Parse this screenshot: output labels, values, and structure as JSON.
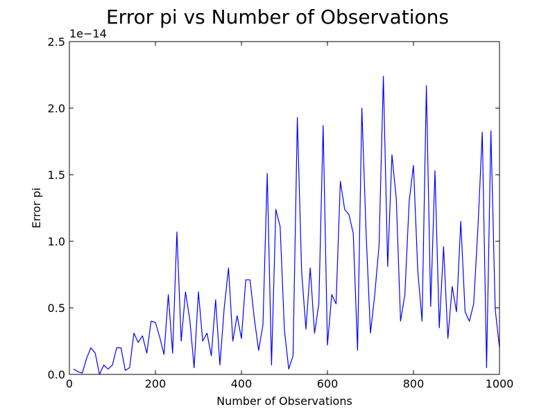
{
  "chart_data": {
    "type": "line",
    "title": "Error pi vs Number of Observations",
    "xlabel": "Number of Observations",
    "ylabel": "Error pi",
    "y_offset_label": "1e−14",
    "xlim": [
      0,
      1000
    ],
    "ylim": [
      0,
      2.5
    ],
    "x_ticks": [
      0,
      200,
      400,
      600,
      800,
      1000
    ],
    "x_tick_labels": [
      "0",
      "200",
      "400",
      "600",
      "800",
      "1000"
    ],
    "y_ticks": [
      0,
      0.5,
      1.0,
      1.5,
      2.0,
      2.5
    ],
    "y_tick_labels": [
      "0.0",
      "0.5",
      "1.0",
      "1.5",
      "2.0",
      "2.5"
    ],
    "grid": false,
    "line_color": "#0000ff",
    "series": [
      {
        "x": [
          10,
          20,
          30,
          40,
          50,
          60,
          70,
          80,
          90,
          100,
          110,
          120,
          130,
          140,
          150,
          160,
          170,
          180,
          190,
          200,
          210,
          220,
          230,
          240,
          250,
          260,
          270,
          280,
          290,
          300,
          310,
          320,
          330,
          340,
          350,
          360,
          370,
          380,
          390,
          400,
          410,
          420,
          430,
          440,
          450,
          460,
          470,
          480,
          490,
          500,
          510,
          520,
          530,
          540,
          550,
          560,
          570,
          580,
          590,
          600,
          610,
          620,
          630,
          640,
          650,
          660,
          670,
          680,
          690,
          700,
          710,
          720,
          730,
          740,
          750,
          760,
          770,
          780,
          790,
          800,
          810,
          820,
          830,
          840,
          850,
          860,
          870,
          880,
          890,
          900,
          910,
          920,
          930,
          940,
          950,
          960,
          970,
          980,
          990,
          1000
        ],
        "y": [
          0.04,
          0.02,
          0.01,
          0.12,
          0.2,
          0.16,
          0.0,
          0.07,
          0.04,
          0.07,
          0.2,
          0.2,
          0.03,
          0.05,
          0.31,
          0.24,
          0.29,
          0.16,
          0.4,
          0.39,
          0.28,
          0.15,
          0.6,
          0.16,
          1.07,
          0.25,
          0.62,
          0.41,
          0.05,
          0.62,
          0.25,
          0.31,
          0.14,
          0.56,
          0.07,
          0.5,
          0.8,
          0.25,
          0.44,
          0.27,
          0.71,
          0.71,
          0.42,
          0.18,
          0.37,
          1.51,
          0.07,
          1.24,
          1.11,
          0.33,
          0.04,
          0.14,
          1.93,
          0.77,
          0.34,
          0.8,
          0.31,
          0.53,
          1.87,
          0.22,
          0.6,
          0.53,
          1.45,
          1.24,
          1.2,
          1.06,
          0.18,
          2.0,
          1.05,
          0.31,
          0.6,
          0.97,
          2.24,
          0.81,
          1.65,
          1.32,
          0.4,
          0.6,
          1.3,
          1.57,
          0.78,
          0.4,
          2.17,
          0.51,
          1.53,
          0.35,
          0.96,
          0.27,
          0.66,
          0.47,
          1.15,
          0.47,
          0.4,
          0.53,
          1.11,
          1.82,
          0.05,
          1.83,
          0.49,
          0.2
        ]
      }
    ]
  }
}
